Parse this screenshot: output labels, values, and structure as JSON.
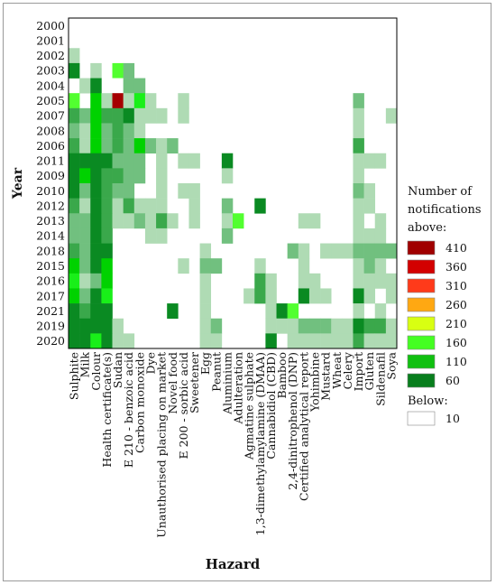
{
  "chart_data": {
    "type": "heatmap",
    "xlabel": "Hazard",
    "ylabel": "Year",
    "years": [
      "2000",
      "2001",
      "2002",
      "2003",
      "2004",
      "2005",
      "2007",
      "2008",
      "2006",
      "2011",
      "2009",
      "2010",
      "2012",
      "2013",
      "2014",
      "2018",
      "2015",
      "2016",
      "2017",
      "2021",
      "2019",
      "2020"
    ],
    "hazards": [
      "Sulphite",
      "Milk",
      "Colour",
      "Health certificate(s)",
      "Sudan",
      "E 210 - benzoic acid",
      "Carbon monoxide",
      "Dye",
      "Unauthorised placing on market",
      "Novel food",
      "E 200 - sorbic acid",
      "Sweetener",
      "Egg",
      "Peanut",
      "Aluminium",
      "Adulteration",
      "Agmatine sulphate",
      "1,3-dimethylamylamine (DMAA)",
      "Cannabidiol (CBD)",
      "Bamboo",
      "2,4-dinitrophenol (DNP)",
      "Certified analytical report",
      "Yohimbine",
      "Mustard",
      "Wheat",
      "Celery",
      "Import",
      "Gluten",
      "Sildenafil",
      "Soya"
    ],
    "matrix": [
      [
        0,
        0,
        0,
        0,
        0,
        0,
        0,
        0,
        0,
        0,
        0,
        0,
        0,
        0,
        0,
        0,
        0,
        0,
        0,
        0,
        0,
        0,
        0,
        0,
        0,
        0,
        0,
        0,
        0,
        0
      ],
      [
        0,
        0,
        0,
        0,
        0,
        0,
        0,
        0,
        0,
        0,
        0,
        0,
        0,
        0,
        0,
        0,
        0,
        0,
        0,
        0,
        0,
        0,
        0,
        0,
        0,
        0,
        0,
        0,
        0,
        0
      ],
      [
        1,
        0,
        0,
        0,
        0,
        0,
        0,
        0,
        0,
        0,
        0,
        0,
        0,
        0,
        0,
        0,
        0,
        0,
        0,
        0,
        0,
        0,
        0,
        0,
        0,
        0,
        0,
        0,
        0,
        0
      ],
      [
        4,
        0,
        1,
        0,
        7,
        2,
        0,
        0,
        0,
        0,
        0,
        0,
        0,
        0,
        0,
        0,
        0,
        0,
        0,
        0,
        0,
        0,
        0,
        0,
        0,
        0,
        0,
        0,
        0,
        0
      ],
      [
        0,
        1,
        4,
        0,
        13,
        2,
        2,
        0,
        0,
        0,
        0,
        0,
        0,
        0,
        0,
        0,
        0,
        0,
        0,
        0,
        0,
        0,
        0,
        0,
        0,
        0,
        0,
        0,
        0,
        0
      ],
      [
        7,
        0,
        5,
        1,
        9,
        1,
        6,
        1,
        0,
        0,
        1,
        0,
        0,
        0,
        0,
        0,
        0,
        0,
        0,
        0,
        0,
        0,
        0,
        0,
        0,
        0,
        2,
        0,
        0,
        0
      ],
      [
        3,
        2,
        5,
        3,
        3,
        4,
        1,
        1,
        1,
        0,
        1,
        0,
        0,
        0,
        0,
        0,
        0,
        0,
        0,
        0,
        0,
        0,
        0,
        0,
        0,
        0,
        1,
        0,
        0,
        1
      ],
      [
        2,
        1,
        5,
        2,
        3,
        2,
        1,
        0,
        0,
        0,
        0,
        0,
        0,
        0,
        0,
        0,
        0,
        0,
        0,
        0,
        0,
        0,
        0,
        0,
        0,
        0,
        1,
        0,
        0,
        0
      ],
      [
        3,
        1,
        5,
        2,
        3,
        2,
        5,
        2,
        1,
        2,
        0,
        0,
        0,
        0,
        0,
        0,
        0,
        0,
        0,
        0,
        0,
        0,
        0,
        0,
        0,
        0,
        3,
        0,
        0,
        0
      ],
      [
        4,
        4,
        4,
        4,
        2,
        2,
        2,
        0,
        1,
        0,
        1,
        1,
        0,
        0,
        4,
        0,
        0,
        0,
        0,
        0,
        0,
        0,
        0,
        0,
        0,
        0,
        1,
        1,
        1,
        0
      ],
      [
        4,
        5,
        4,
        3,
        3,
        2,
        2,
        0,
        1,
        0,
        0,
        0,
        0,
        0,
        1,
        0,
        0,
        0,
        0,
        0,
        0,
        0,
        0,
        0,
        0,
        0,
        1,
        0,
        0,
        0
      ],
      [
        4,
        2,
        4,
        3,
        2,
        2,
        0,
        0,
        1,
        0,
        1,
        1,
        0,
        0,
        0,
        0,
        0,
        0,
        0,
        0,
        0,
        0,
        0,
        0,
        0,
        0,
        2,
        1,
        0,
        0
      ],
      [
        3,
        1,
        4,
        3,
        1,
        3,
        1,
        1,
        1,
        0,
        0,
        1,
        0,
        0,
        2,
        0,
        0,
        4,
        0,
        0,
        0,
        0,
        0,
        0,
        0,
        0,
        1,
        1,
        0,
        0
      ],
      [
        2,
        2,
        4,
        3,
        1,
        1,
        2,
        1,
        3,
        1,
        0,
        1,
        0,
        0,
        1,
        7,
        0,
        0,
        0,
        0,
        0,
        1,
        1,
        0,
        0,
        0,
        1,
        0,
        1,
        0
      ],
      [
        2,
        2,
        4,
        3,
        0,
        0,
        0,
        1,
        1,
        0,
        0,
        0,
        0,
        0,
        2,
        0,
        0,
        0,
        0,
        0,
        0,
        0,
        0,
        0,
        0,
        0,
        1,
        1,
        1,
        0
      ],
      [
        3,
        2,
        4,
        4,
        0,
        0,
        0,
        0,
        0,
        0,
        0,
        0,
        1,
        0,
        0,
        0,
        0,
        0,
        0,
        0,
        2,
        1,
        0,
        1,
        1,
        1,
        2,
        2,
        2,
        2
      ],
      [
        5,
        2,
        4,
        5,
        0,
        0,
        0,
        0,
        0,
        0,
        1,
        0,
        2,
        2,
        0,
        0,
        0,
        1,
        0,
        0,
        0,
        1,
        0,
        0,
        0,
        0,
        1,
        2,
        1,
        0
      ],
      [
        6,
        1,
        2,
        5,
        0,
        0,
        0,
        0,
        0,
        0,
        0,
        0,
        1,
        0,
        0,
        0,
        0,
        3,
        1,
        0,
        0,
        1,
        1,
        0,
        0,
        0,
        1,
        1,
        1,
        1
      ],
      [
        5,
        2,
        4,
        6,
        0,
        0,
        0,
        0,
        0,
        0,
        0,
        0,
        1,
        0,
        0,
        0,
        1,
        3,
        1,
        0,
        0,
        4,
        1,
        1,
        0,
        0,
        4,
        1,
        0,
        1
      ],
      [
        4,
        3,
        4,
        4,
        0,
        0,
        0,
        0,
        0,
        4,
        0,
        0,
        1,
        0,
        0,
        0,
        0,
        0,
        1,
        4,
        7,
        0,
        0,
        0,
        0,
        0,
        1,
        0,
        1,
        0
      ],
      [
        4,
        4,
        4,
        4,
        1,
        0,
        0,
        0,
        0,
        0,
        0,
        0,
        1,
        2,
        0,
        0,
        0,
        0,
        1,
        1,
        1,
        2,
        2,
        2,
        1,
        1,
        4,
        3,
        3,
        1
      ],
      [
        4,
        4,
        6,
        4,
        1,
        1,
        0,
        0,
        0,
        0,
        0,
        0,
        1,
        1,
        0,
        0,
        0,
        0,
        4,
        0,
        1,
        1,
        1,
        1,
        1,
        1,
        3,
        1,
        1,
        1
      ]
    ],
    "legend": {
      "title_lines": [
        "Number of",
        "notifications",
        "above:"
      ],
      "items": [
        {
          "label": "410",
          "color": "#a00000"
        },
        {
          "label": "360",
          "color": "#d30000"
        },
        {
          "label": "310",
          "color": "#ff3a1a"
        },
        {
          "label": "260",
          "color": "#ffa812"
        },
        {
          "label": "210",
          "color": "#d8ff12"
        },
        {
          "label": "160",
          "color": "#44ff22"
        },
        {
          "label": "110",
          "color": "#10c010"
        },
        {
          "label": "60",
          "color": "#087e1d"
        }
      ],
      "below_title": "Below:",
      "below_label": "10",
      "below_color": "#ffffff"
    },
    "level_colors": [
      "#ffffff",
      "#afdbb4",
      "#71c07f",
      "#3aa84b",
      "#0a8a22",
      "#00d200",
      "#19ef19",
      "#52ff30",
      "#ffb117",
      "#a50000"
    ]
  }
}
